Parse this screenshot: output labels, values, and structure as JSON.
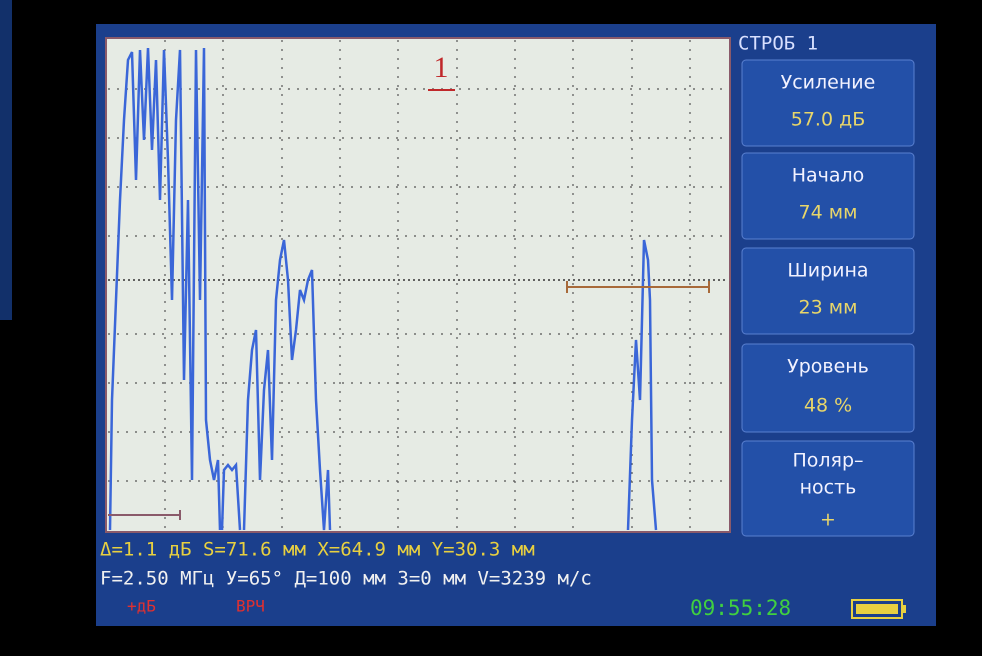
{
  "header": {
    "gate": "СТРОБ 1",
    "gate_marker": "1"
  },
  "menu": [
    {
      "label": "Усиление",
      "value": "57.0 дБ"
    },
    {
      "label": "Начало",
      "value": "74 мм"
    },
    {
      "label": "Ширина",
      "value": "23 мм"
    },
    {
      "label": "Уровень",
      "value": "48 %"
    },
    {
      "label": [
        "Поляр–",
        "ность"
      ],
      "value": "+"
    }
  ],
  "status": {
    "measure_line": "Δ=1.1 дБ S=71.6 мм X=64.9 мм Y=30.3 мм",
    "params_line": "F=2.50 МГц У=65° Д=100 мм З=0 мм V=3239 м/с",
    "gain_mode": "+дБ",
    "tcg": "ВРЧ",
    "time": "09:55:28"
  }
}
